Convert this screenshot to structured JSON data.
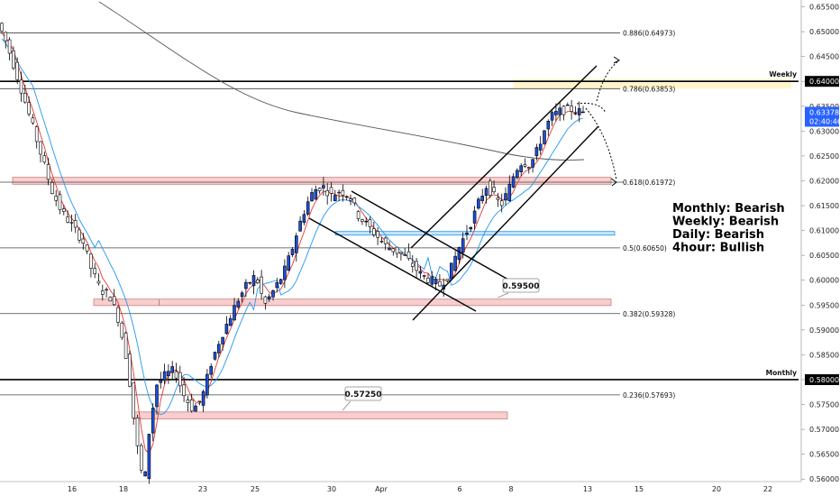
{
  "chart_data": {
    "type": "candlestick",
    "y_axis": {
      "range": [
        0.5595,
        0.656
      ],
      "ticks": [
        "0.65500",
        "0.65000",
        "0.64500",
        "0.64000",
        "0.63500",
        "0.63000",
        "0.62500",
        "0.62000",
        "0.61500",
        "0.61000",
        "0.60500",
        "0.60000",
        "0.59500",
        "0.59000",
        "0.58500",
        "0.58000",
        "0.57500",
        "0.57000",
        "0.56500",
        "0.56000"
      ]
    },
    "x_axis": {
      "ticks": [
        "16",
        "18",
        "23",
        "25",
        "30",
        "Apr",
        "6",
        "8",
        "13",
        "15",
        "20",
        "22"
      ]
    },
    "fib_levels": [
      {
        "label": "0.886(0.64973)",
        "value": 0.64973
      },
      {
        "label": "0.786(0.63853)",
        "value": 0.63853
      },
      {
        "label": "0.618(0.61972)",
        "value": 0.61972
      },
      {
        "label": "0.5(0.60650)",
        "value": 0.6065
      },
      {
        "label": "0.382(0.59328)",
        "value": 0.59328
      },
      {
        "label": "0.236(0.57693)",
        "value": 0.57693
      }
    ],
    "key_levels": [
      {
        "label": "Weekly",
        "value": 0.64,
        "price_label": "0.64000"
      },
      {
        "label": "Monthly",
        "value": 0.58,
        "price_label": "0.58000"
      }
    ],
    "current_price": {
      "value": 0.63378,
      "label": "0.63378",
      "countdown": "02:40:46"
    },
    "callouts": [
      {
        "text": "0.59500",
        "value": 0.595
      },
      {
        "text": "0.57250",
        "value": 0.5725
      }
    ],
    "bias": [
      "Monthly: Bearish",
      "Weekly: Bearish",
      "Daily: Bearish",
      "4hour: Bullish"
    ],
    "zones": [
      {
        "kind": "resistance",
        "top": 0.6207,
        "bottom": 0.6193
      },
      {
        "kind": "support",
        "top": 0.5962,
        "bottom": 0.5949
      },
      {
        "kind": "support",
        "top": 0.5735,
        "bottom": 0.5721
      },
      {
        "kind": "demand",
        "top": 0.6098,
        "bottom": 0.6092
      },
      {
        "kind": "supply",
        "top": 0.6405,
        "bottom": 0.6385
      }
    ],
    "price_path": [
      [
        0,
        0.6525
      ],
      [
        10,
        0.6485
      ],
      [
        20,
        0.643
      ],
      [
        32,
        0.636
      ],
      [
        42,
        0.63
      ],
      [
        52,
        0.624
      ],
      [
        62,
        0.618
      ],
      [
        72,
        0.614
      ],
      [
        84,
        0.611
      ],
      [
        96,
        0.608
      ],
      [
        106,
        0.602
      ],
      [
        116,
        0.598
      ],
      [
        126,
        0.597
      ],
      [
        136,
        0.592
      ],
      [
        146,
        0.583
      ],
      [
        154,
        0.57
      ],
      [
        160,
        0.562
      ],
      [
        165,
        0.56
      ],
      [
        170,
        0.57
      ],
      [
        178,
        0.579
      ],
      [
        188,
        0.581
      ],
      [
        198,
        0.582
      ],
      [
        208,
        0.577
      ],
      [
        218,
        0.574
      ],
      [
        228,
        0.576
      ],
      [
        238,
        0.583
      ],
      [
        248,
        0.588
      ],
      [
        258,
        0.592
      ],
      [
        268,
        0.596
      ],
      [
        278,
        0.599
      ],
      [
        288,
        0.601
      ],
      [
        298,
        0.595
      ],
      [
        308,
        0.598
      ],
      [
        318,
        0.601
      ],
      [
        328,
        0.606
      ],
      [
        336,
        0.611
      ],
      [
        344,
        0.615
      ],
      [
        352,
        0.618
      ],
      [
        362,
        0.619
      ],
      [
        372,
        0.617
      ],
      [
        382,
        0.618
      ],
      [
        392,
        0.617
      ],
      [
        402,
        0.613
      ],
      [
        412,
        0.611
      ],
      [
        422,
        0.609
      ],
      [
        432,
        0.607
      ],
      [
        442,
        0.606
      ],
      [
        452,
        0.605
      ],
      [
        462,
        0.603
      ],
      [
        472,
        0.601
      ],
      [
        482,
        0.6
      ],
      [
        492,
        0.599
      ],
      [
        502,
        0.601
      ],
      [
        512,
        0.606
      ],
      [
        520,
        0.609
      ],
      [
        528,
        0.612
      ],
      [
        536,
        0.616
      ],
      [
        544,
        0.619
      ],
      [
        552,
        0.617
      ],
      [
        560,
        0.615
      ],
      [
        568,
        0.618
      ],
      [
        576,
        0.622
      ],
      [
        584,
        0.624
      ],
      [
        592,
        0.623
      ],
      [
        600,
        0.626
      ],
      [
        608,
        0.63
      ],
      [
        616,
        0.633
      ],
      [
        626,
        0.634
      ],
      [
        636,
        0.6345
      ],
      [
        644,
        0.634
      ],
      [
        650,
        0.6338
      ]
    ],
    "moving_averages": [
      {
        "color": "#e53935",
        "offset": 0.0012,
        "lag": 3
      },
      {
        "color": "#2196f3",
        "offset": 0.0025,
        "lag": 8
      }
    ],
    "colors": {
      "bull": "#1e4fd8",
      "bear": "#ffffff",
      "wick": "#000000",
      "zone_red": "#f7c5c5",
      "zone_blue": "#bfe0f6",
      "zone_yellow": "#fff3c4",
      "price_tag": "#2962ff"
    }
  }
}
